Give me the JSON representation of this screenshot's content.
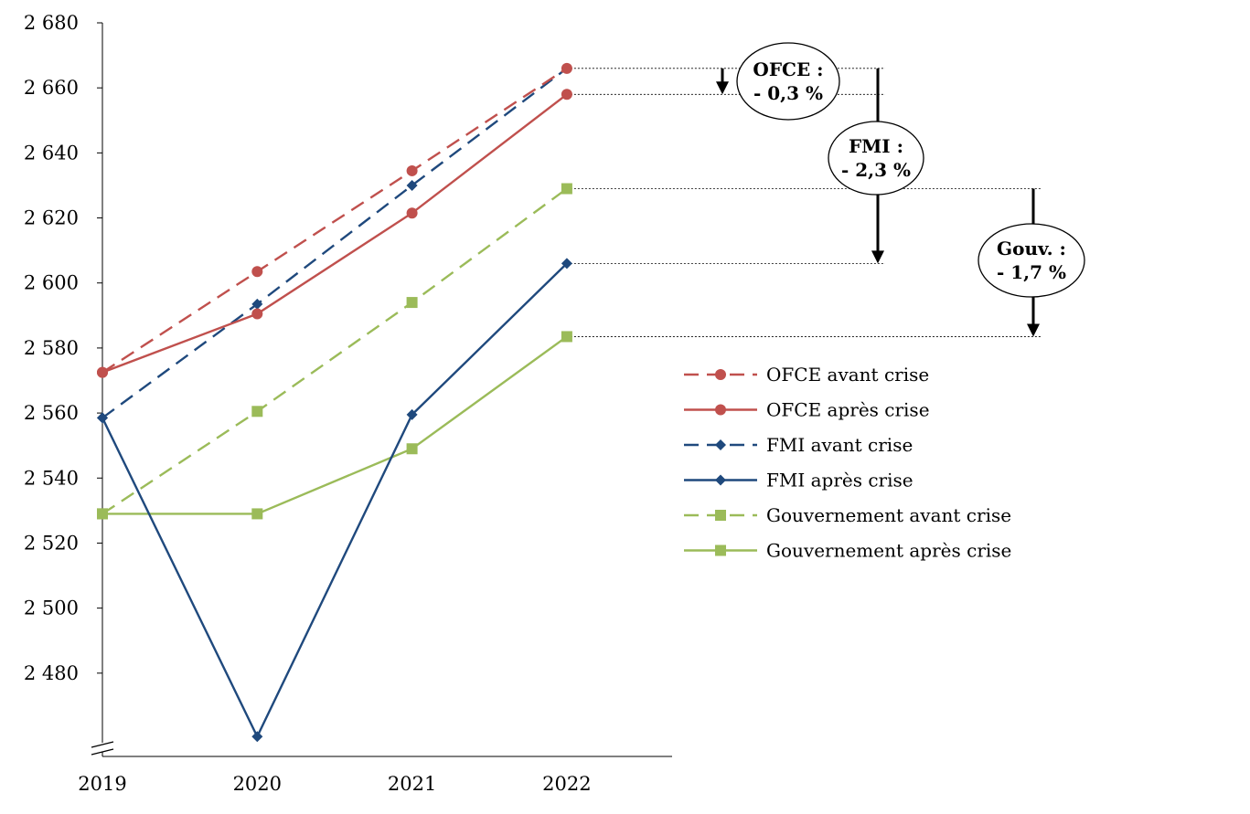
{
  "chart_data": {
    "type": "line",
    "x": [
      2019,
      2020,
      2021,
      2022
    ],
    "x_tick_labels": [
      "2019",
      "2020",
      "2021",
      "2022"
    ],
    "ylim": [
      2460,
      2680
    ],
    "y_ticks": [
      2480,
      2500,
      2520,
      2540,
      2560,
      2580,
      2600,
      2620,
      2640,
      2660,
      2680
    ],
    "y_tick_labels": [
      "2 480",
      "2 500",
      "2 520",
      "2 540",
      "2 560",
      "2 580",
      "2 600",
      "2 620",
      "2 640",
      "2 660",
      "2 680"
    ],
    "axis_break": true,
    "grid": false,
    "legend_placement": "right",
    "series": [
      {
        "name": "OFCE avant crise",
        "values": [
          2572.5,
          2603.5,
          2634.5,
          2666.0
        ],
        "color": "#c0504d",
        "dash": true,
        "marker": "circle"
      },
      {
        "name": "OFCE après crise",
        "values": [
          2572.5,
          2590.5,
          2621.5,
          2658.0
        ],
        "color": "#c0504d",
        "dash": false,
        "marker": "circle"
      },
      {
        "name": "FMI avant crise",
        "values": [
          2558.5,
          2593.5,
          2630.0,
          2666.0
        ],
        "color": "#1f497d",
        "dash": true,
        "marker": "diamond"
      },
      {
        "name": "FMI après crise",
        "values": [
          2558.5,
          2460.5,
          2559.5,
          2606.0
        ],
        "color": "#1f497d",
        "dash": false,
        "marker": "diamond"
      },
      {
        "name": "Gouvernement avant crise",
        "values": [
          2529.0,
          2560.5,
          2594.0,
          2629.0
        ],
        "color": "#9bbb59",
        "dash": true,
        "marker": "square"
      },
      {
        "name": "Gouvernement après crise",
        "values": [
          2529.0,
          2529.0,
          2549.0,
          2583.5
        ],
        "color": "#9bbb59",
        "dash": false,
        "marker": "square"
      }
    ],
    "annotations": [
      {
        "line1": "OFCE :",
        "line2": "- 0,3 %",
        "from": 2666.0,
        "to": 2658.0
      },
      {
        "line1": "FMI :",
        "line2": "- 2,3 %",
        "from": 2666.0,
        "to": 2606.0
      },
      {
        "line1": "Gouv. :",
        "line2": "- 1,7 %",
        "from": 2629.0,
        "to": 2583.5
      }
    ]
  }
}
